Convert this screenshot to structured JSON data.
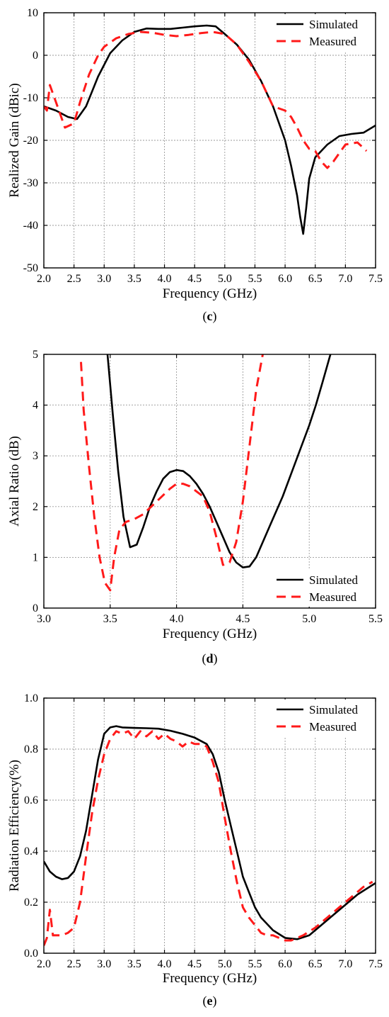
{
  "colors": {
    "simulated": "#000000",
    "measured": "#ff1a1a",
    "grid": "#9a9a9a"
  },
  "chart_data": [
    {
      "type": "line",
      "panel_label": "(c)",
      "panel_letter": "c",
      "xlabel": "Frequency (GHz)",
      "ylabel": "Realized Gain (dBic)",
      "xlim": [
        2.0,
        7.5
      ],
      "ylim": [
        -50,
        10
      ],
      "xticks": [
        2.0,
        2.5,
        3.0,
        3.5,
        4.0,
        4.5,
        5.0,
        5.5,
        6.0,
        6.5,
        7.0,
        7.5
      ],
      "xtick_labels": [
        "2.0",
        "2.5",
        "3.0",
        "3.5",
        "4.0",
        "4.5",
        "5.0",
        "5.5",
        "6.0",
        "6.5",
        "7.0",
        "7.5"
      ],
      "yticks": [
        -50,
        -40,
        -30,
        -20,
        -10,
        0,
        10
      ],
      "ytick_labels": [
        "-50",
        "-40",
        "-30",
        "-20",
        "-10",
        "0",
        "10"
      ],
      "grid": true,
      "legend_position": "top-right",
      "series": [
        {
          "name": "Simulated",
          "style": "solid",
          "color": "#000000",
          "x": [
            2.0,
            2.2,
            2.4,
            2.55,
            2.7,
            2.9,
            3.1,
            3.3,
            3.5,
            3.7,
            3.9,
            4.1,
            4.3,
            4.5,
            4.7,
            4.85,
            5.0,
            5.2,
            5.4,
            5.6,
            5.8,
            6.0,
            6.1,
            6.2,
            6.25,
            6.3,
            6.35,
            6.4,
            6.5,
            6.7,
            6.9,
            7.1,
            7.3,
            7.5
          ],
          "y": [
            -12,
            -13,
            -14.5,
            -15,
            -12,
            -5,
            0.5,
            3.5,
            5.5,
            6.3,
            6.2,
            6.2,
            6.5,
            6.8,
            7.0,
            6.8,
            5.0,
            2.5,
            -1,
            -6,
            -12,
            -20,
            -26,
            -33,
            -38,
            -42,
            -36,
            -29,
            -24,
            -21,
            -19,
            -18.5,
            -18.2,
            -16.5
          ]
        },
        {
          "name": "Measured",
          "style": "dashed",
          "color": "#ff1a1a",
          "x": [
            2.0,
            2.05,
            2.1,
            2.2,
            2.35,
            2.5,
            2.6,
            2.75,
            2.9,
            3.0,
            3.2,
            3.4,
            3.6,
            3.8,
            4.0,
            4.2,
            4.4,
            4.6,
            4.8,
            5.0,
            5.2,
            5.4,
            5.6,
            5.8,
            6.0,
            6.1,
            6.2,
            6.3,
            6.4,
            6.5,
            6.6,
            6.7,
            6.8,
            6.9,
            7.0,
            7.2,
            7.35
          ],
          "y": [
            -12,
            -13,
            -7,
            -11,
            -17,
            -16,
            -11,
            -4.5,
            0,
            2,
            4,
            5,
            5.5,
            5.3,
            4.8,
            4.5,
            4.8,
            5.2,
            5.5,
            5.0,
            2.5,
            -1.5,
            -6,
            -12,
            -13,
            -14.5,
            -17,
            -20,
            -22,
            -22.5,
            -25,
            -26.5,
            -25,
            -23,
            -21,
            -20.5,
            -22.5
          ]
        }
      ]
    },
    {
      "type": "line",
      "panel_label": "(d)",
      "panel_letter": "d",
      "xlabel": "Frequency (GHz)",
      "ylabel": "Axial Ratio (dB)",
      "xlim": [
        3.0,
        5.5
      ],
      "ylim": [
        0,
        5
      ],
      "xticks": [
        3.0,
        3.5,
        4.0,
        4.5,
        5.0,
        5.5
      ],
      "xtick_labels": [
        "3.0",
        "3.5",
        "4.0",
        "4.5",
        "5.0",
        "5.5"
      ],
      "yticks": [
        0,
        1,
        2,
        3,
        4,
        5
      ],
      "ytick_labels": [
        "0",
        "1",
        "2",
        "3",
        "4",
        "5"
      ],
      "grid": true,
      "legend_position": "bottom-right",
      "series": [
        {
          "name": "Simulated",
          "style": "solid",
          "color": "#000000",
          "x": [
            3.48,
            3.52,
            3.56,
            3.6,
            3.65,
            3.7,
            3.75,
            3.8,
            3.85,
            3.9,
            3.95,
            4.0,
            4.05,
            4.1,
            4.15,
            4.2,
            4.25,
            4.3,
            4.35,
            4.4,
            4.45,
            4.5,
            4.55,
            4.6,
            4.7,
            4.8,
            4.9,
            5.0,
            5.05,
            5.1,
            5.16
          ],
          "y": [
            5.0,
            3.8,
            2.7,
            1.8,
            1.2,
            1.25,
            1.6,
            2.0,
            2.3,
            2.55,
            2.68,
            2.72,
            2.7,
            2.6,
            2.45,
            2.25,
            2.0,
            1.7,
            1.4,
            1.1,
            0.9,
            0.8,
            0.82,
            1.0,
            1.6,
            2.2,
            2.9,
            3.6,
            4.0,
            4.45,
            5.0
          ]
        },
        {
          "name": "Measured",
          "style": "dashed",
          "color": "#ff1a1a",
          "x": [
            3.28,
            3.3,
            3.34,
            3.38,
            3.42,
            3.46,
            3.5,
            3.53,
            3.57,
            3.62,
            3.68,
            3.75,
            3.85,
            3.95,
            4.0,
            4.05,
            4.1,
            4.15,
            4.2,
            4.25,
            4.3,
            4.35,
            4.4,
            4.45,
            4.5,
            4.55,
            4.6,
            4.65
          ],
          "y": [
            4.85,
            3.9,
            2.8,
            1.8,
            1.0,
            0.5,
            0.35,
            1.0,
            1.55,
            1.7,
            1.75,
            1.85,
            2.1,
            2.35,
            2.45,
            2.45,
            2.4,
            2.3,
            2.2,
            1.9,
            1.4,
            0.85,
            0.9,
            1.3,
            2.1,
            3.2,
            4.3,
            5.0
          ]
        }
      ]
    },
    {
      "type": "line",
      "panel_label": "(e)",
      "panel_letter": "e",
      "xlabel": "Frequency (GHz)",
      "ylabel": "Radiation Efficiency(%)",
      "xlim": [
        2.0,
        7.5
      ],
      "ylim": [
        0.0,
        1.0
      ],
      "xticks": [
        2.0,
        2.5,
        3.0,
        3.5,
        4.0,
        4.5,
        5.0,
        5.5,
        6.0,
        6.5,
        7.0,
        7.5
      ],
      "xtick_labels": [
        "2.0",
        "2.5",
        "3.0",
        "3.5",
        "4.0",
        "4.5",
        "5.0",
        "5.5",
        "6.0",
        "6.5",
        "7.0",
        "7.5"
      ],
      "yticks": [
        0.0,
        0.2,
        0.4,
        0.6,
        0.8,
        1.0
      ],
      "ytick_labels": [
        "0.0",
        "0.2",
        "0.4",
        "0.6",
        "0.8",
        "1.0"
      ],
      "grid": true,
      "legend_position": "top-right",
      "series": [
        {
          "name": "Simulated",
          "style": "solid",
          "color": "#000000",
          "x": [
            2.0,
            2.1,
            2.2,
            2.3,
            2.4,
            2.5,
            2.6,
            2.7,
            2.8,
            2.9,
            3.0,
            3.1,
            3.2,
            3.3,
            3.5,
            3.7,
            3.9,
            4.1,
            4.3,
            4.5,
            4.7,
            4.8,
            4.9,
            5.0,
            5.1,
            5.2,
            5.3,
            5.4,
            5.5,
            5.6,
            5.8,
            6.0,
            6.2,
            6.4,
            6.6,
            6.8,
            7.0,
            7.2,
            7.5
          ],
          "y": [
            0.36,
            0.32,
            0.3,
            0.29,
            0.295,
            0.32,
            0.38,
            0.48,
            0.62,
            0.76,
            0.86,
            0.885,
            0.89,
            0.885,
            0.883,
            0.882,
            0.88,
            0.872,
            0.86,
            0.845,
            0.82,
            0.78,
            0.71,
            0.6,
            0.5,
            0.4,
            0.3,
            0.24,
            0.18,
            0.14,
            0.09,
            0.06,
            0.055,
            0.07,
            0.11,
            0.15,
            0.19,
            0.23,
            0.275
          ]
        },
        {
          "name": "Measured",
          "style": "dashed",
          "color": "#ff1a1a",
          "x": [
            2.0,
            2.05,
            2.1,
            2.15,
            2.2,
            2.3,
            2.4,
            2.5,
            2.6,
            2.7,
            2.8,
            2.9,
            3.0,
            3.1,
            3.2,
            3.3,
            3.4,
            3.5,
            3.6,
            3.7,
            3.8,
            3.9,
            4.0,
            4.1,
            4.2,
            4.3,
            4.4,
            4.5,
            4.6,
            4.7,
            4.8,
            4.9,
            5.0,
            5.1,
            5.2,
            5.3,
            5.4,
            5.5,
            5.6,
            5.7,
            5.8,
            5.9,
            6.0,
            6.1,
            6.2,
            6.3,
            6.5,
            6.7,
            6.9,
            7.1,
            7.3,
            7.45
          ],
          "y": [
            0.03,
            0.06,
            0.17,
            0.07,
            0.07,
            0.07,
            0.08,
            0.1,
            0.2,
            0.38,
            0.55,
            0.68,
            0.78,
            0.84,
            0.87,
            0.86,
            0.87,
            0.84,
            0.87,
            0.85,
            0.87,
            0.84,
            0.86,
            0.84,
            0.83,
            0.81,
            0.83,
            0.82,
            0.82,
            0.81,
            0.75,
            0.67,
            0.53,
            0.4,
            0.28,
            0.18,
            0.14,
            0.11,
            0.08,
            0.07,
            0.07,
            0.06,
            0.05,
            0.05,
            0.06,
            0.07,
            0.1,
            0.14,
            0.18,
            0.22,
            0.26,
            0.28
          ]
        }
      ]
    }
  ]
}
